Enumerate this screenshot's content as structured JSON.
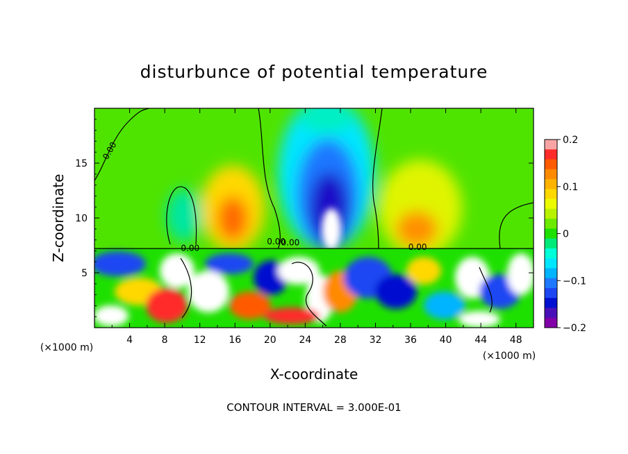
{
  "chart_data": {
    "type": "heatmap",
    "title": "disturbunce of potential temperature",
    "xlabel": "X-coordinate",
    "ylabel": "Z-coordinate",
    "x_unit": "(×1000 m)",
    "x_unit_right": "(×1000 m)",
    "xlim": [
      0,
      50
    ],
    "ylim": [
      0,
      20
    ],
    "x_ticks": [
      4,
      8,
      12,
      16,
      20,
      24,
      28,
      32,
      36,
      40,
      44,
      48
    ],
    "y_ticks": [
      5,
      10,
      15
    ],
    "colorbar": {
      "min": -0.2,
      "max": 0.2,
      "ticks": [
        0.2,
        0.1,
        0,
        -0.1,
        -0.2
      ],
      "tick_labels": [
        "0.2",
        "0.1",
        "0",
        "−0.1",
        "−0.2"
      ],
      "colors": [
        "#f9a4a4",
        "#ff2b2b",
        "#ff5a00",
        "#ff8a00",
        "#ffb200",
        "#ffd800",
        "#ecfa00",
        "#b8f200",
        "#6cea00",
        "#1ee000",
        "#00ea7a",
        "#00ffd8",
        "#00e6ff",
        "#00b4ff",
        "#1e78ff",
        "#1c46f2",
        "#0010d0",
        "#4a10b8",
        "#8200a8"
      ]
    },
    "contour_labels": [
      "0.00",
      "0.00",
      "0.00",
      "0.00",
      "0.00"
    ],
    "contour_interval_text": "CONTOUR INTERVAL = 3.000E-01",
    "grid": false,
    "legend": "colorbar at right"
  }
}
